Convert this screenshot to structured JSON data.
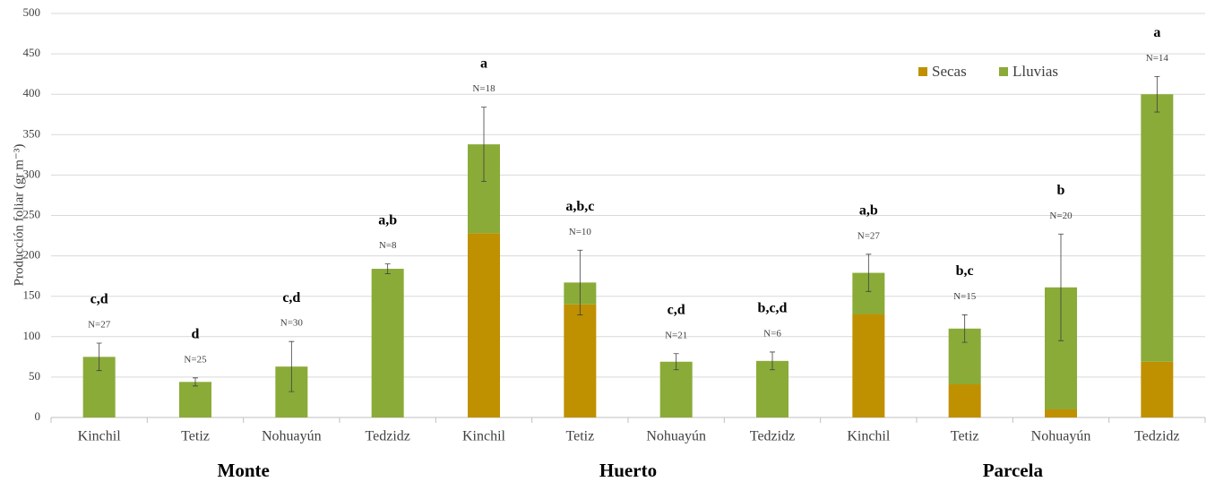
{
  "chart_data": {
    "type": "stacked_bar",
    "y_label": "Producción foliar (gr m⁻³)",
    "categories": [
      "Kinchil",
      "Tetiz",
      "Nohuayún",
      "Tedzidz",
      "Kinchil",
      "Tetiz",
      "Nohuayún",
      "Tedzidz",
      "Kinchil",
      "Tetiz",
      "Nohuayún",
      "Tedzidz"
    ],
    "groups": [
      "Monte",
      "Huerto",
      "Parcela"
    ],
    "series": [
      {
        "name": "Secas",
        "color": "#bf9000",
        "values": [
          0,
          0,
          0,
          0,
          228,
          140,
          0,
          0,
          128,
          41,
          10,
          69
        ]
      },
      {
        "name": "Lluvias",
        "color": "#8aab38",
        "values": [
          75,
          44,
          63,
          184,
          110,
          27,
          69,
          70,
          51,
          69,
          151,
          331
        ]
      }
    ],
    "errors": [
      17,
      5,
      31,
      6,
      46,
      40,
      10,
      11,
      23,
      17,
      66,
      22
    ],
    "letters": [
      "c,d",
      "d",
      "c,d",
      "a,b",
      "a",
      "a,b,c",
      "c,d",
      "b,c,d",
      "a,b",
      "b,c",
      "b",
      "a"
    ],
    "n_labels": [
      "N=27",
      "N=25",
      "N=30",
      "N=8",
      "N=18",
      "N=10",
      "N=21",
      "N=6",
      "N=27",
      "N=15",
      "N=20",
      "N=14"
    ],
    "ylim": [
      0,
      500
    ],
    "yticks": [
      0,
      50,
      100,
      150,
      200,
      250,
      300,
      350,
      400,
      450,
      500
    ],
    "grid": true,
    "legend": "top-right"
  }
}
